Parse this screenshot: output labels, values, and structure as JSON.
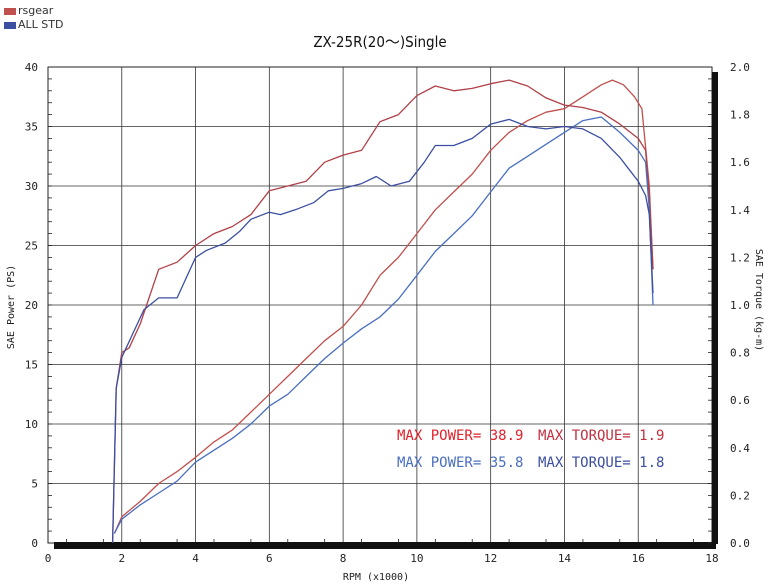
{
  "chart_data": {
    "type": "line",
    "title": "ZX-25R(20～)Single",
    "xlabel": "RPM (x1000)",
    "ylabel": "SAE Power (PS)",
    "y2label": "SAE Torque (kg-m)",
    "xlim": [
      0,
      18
    ],
    "ylim": [
      0,
      40
    ],
    "y2lim": [
      0,
      2.0
    ],
    "xticks": [
      "0",
      "2",
      "4",
      "6",
      "8",
      "10",
      "12",
      "14",
      "16",
      "18"
    ],
    "yticks": [
      "0",
      "5",
      "10",
      "15",
      "20",
      "25",
      "30",
      "35",
      "40"
    ],
    "y2ticks": [
      "0.0",
      "0.2",
      "0.4",
      "0.6",
      "0.8",
      "1.0",
      "1.2",
      "1.4",
      "1.6",
      "1.8",
      "2.0"
    ],
    "grid": true,
    "legend_position": "top-left",
    "series": [
      {
        "name": "rsgear",
        "color": "#c0504d",
        "kind": "power",
        "axis": "left",
        "x": [
          1.8,
          2.0,
          2.5,
          3.0,
          3.5,
          4.0,
          4.5,
          5.0,
          5.5,
          6.0,
          6.5,
          7.0,
          7.5,
          8.0,
          8.5,
          9.0,
          9.5,
          10.0,
          10.5,
          11.0,
          11.5,
          12.0,
          12.5,
          13.0,
          13.5,
          14.0,
          14.5,
          15.0,
          15.3,
          15.6,
          15.9,
          16.1,
          16.3,
          16.4
        ],
        "y": [
          0.8,
          2.2,
          3.5,
          5.0,
          6.0,
          7.2,
          8.5,
          9.5,
          11.0,
          12.5,
          14.0,
          15.5,
          17.0,
          18.2,
          20.0,
          22.5,
          24.0,
          26.0,
          28.0,
          29.5,
          31.0,
          33.0,
          34.5,
          35.5,
          36.2,
          36.5,
          37.5,
          38.5,
          38.9,
          38.5,
          37.5,
          36.5,
          30.0,
          23.0
        ]
      },
      {
        "name": "rsgear",
        "color": "#b04048",
        "kind": "torque",
        "axis": "right",
        "x": [
          1.75,
          1.85,
          2.0,
          2.2,
          2.5,
          3.0,
          3.5,
          4.0,
          4.5,
          5.0,
          5.5,
          6.0,
          6.5,
          7.0,
          7.5,
          8.0,
          8.5,
          9.0,
          9.5,
          10.0,
          10.5,
          11.0,
          11.5,
          12.0,
          12.5,
          13.0,
          13.5,
          14.0,
          14.5,
          15.0,
          15.5,
          16.0,
          16.2,
          16.3,
          16.4
        ],
        "y": [
          0.0,
          0.65,
          0.8,
          0.82,
          0.92,
          1.15,
          1.18,
          1.25,
          1.3,
          1.33,
          1.38,
          1.48,
          1.5,
          1.52,
          1.6,
          1.63,
          1.65,
          1.77,
          1.8,
          1.88,
          1.92,
          1.9,
          1.91,
          1.93,
          1.945,
          1.92,
          1.87,
          1.84,
          1.83,
          1.81,
          1.76,
          1.7,
          1.65,
          1.45,
          1.15
        ]
      },
      {
        "name": "ALL STD",
        "color": "#4a6fc0",
        "kind": "power",
        "axis": "left",
        "x": [
          1.8,
          2.0,
          2.5,
          3.0,
          3.5,
          4.0,
          4.5,
          5.0,
          5.5,
          6.0,
          6.5,
          7.0,
          7.5,
          8.0,
          8.5,
          9.0,
          9.5,
          10.0,
          10.5,
          11.0,
          11.5,
          12.0,
          12.5,
          13.0,
          13.5,
          14.0,
          14.5,
          15.0,
          15.5,
          16.0,
          16.2,
          16.3,
          16.4
        ],
        "y": [
          0.8,
          2.0,
          3.2,
          4.2,
          5.2,
          6.8,
          7.8,
          8.8,
          10.0,
          11.5,
          12.5,
          14.0,
          15.5,
          16.8,
          18.0,
          19.0,
          20.5,
          22.5,
          24.5,
          26.0,
          27.5,
          29.5,
          31.5,
          32.5,
          33.5,
          34.5,
          35.5,
          35.8,
          34.5,
          33.0,
          32.0,
          28.0,
          20.0
        ]
      },
      {
        "name": "ALL STD",
        "color": "#3c4fa0",
        "kind": "torque",
        "axis": "right",
        "x": [
          1.75,
          1.85,
          2.0,
          2.3,
          2.6,
          3.0,
          3.5,
          4.0,
          4.3,
          4.8,
          5.2,
          5.5,
          6.0,
          6.3,
          6.7,
          7.2,
          7.6,
          8.0,
          8.5,
          8.9,
          9.3,
          9.8,
          10.2,
          10.5,
          11.0,
          11.5,
          12.0,
          12.5,
          13.0,
          13.5,
          14.0,
          14.5,
          15.0,
          15.5,
          15.8,
          16.0,
          16.2,
          16.3,
          16.4
        ],
        "y": [
          0.0,
          0.65,
          0.78,
          0.88,
          0.98,
          1.03,
          1.03,
          1.2,
          1.23,
          1.26,
          1.31,
          1.36,
          1.39,
          1.38,
          1.4,
          1.43,
          1.48,
          1.49,
          1.51,
          1.54,
          1.5,
          1.52,
          1.6,
          1.67,
          1.67,
          1.7,
          1.76,
          1.78,
          1.75,
          1.74,
          1.75,
          1.74,
          1.7,
          1.62,
          1.56,
          1.52,
          1.46,
          1.38,
          1.05
        ]
      }
    ],
    "annotations": [
      {
        "text": "MAX POWER= 38.9",
        "color": "#e0202a"
      },
      {
        "text": "MAX TORQUE= 1.9",
        "color": "#c03040"
      },
      {
        "text": "MAX POWER= 35.8",
        "color": "#4a6fc0"
      },
      {
        "text": "MAX TORQUE= 1.8",
        "color": "#3c4fa0"
      }
    ]
  }
}
